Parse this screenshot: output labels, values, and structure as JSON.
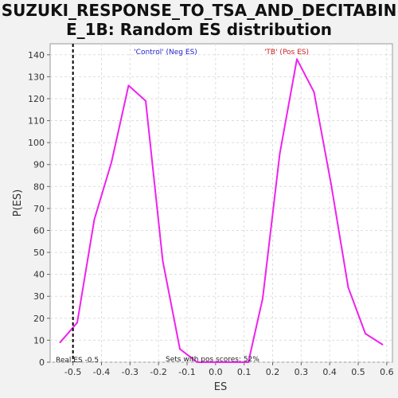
{
  "title_lines": [
    "SUZUKI_RESPONSE_TO_TSA_AND_DECITABIN",
    "E_1B: Random ES distribution"
  ],
  "chart_data": {
    "type": "line",
    "title": "SUZUKI_RESPONSE_TO_TSA_AND_DECITABINE_1B: Random ES distribution",
    "xlabel": "ES",
    "ylabel": "P(ES)",
    "xlim": [
      -0.58,
      0.62
    ],
    "ylim": [
      0,
      145
    ],
    "xticks": [
      -0.5,
      -0.4,
      -0.3,
      -0.2,
      -0.1,
      0.0,
      0.1,
      0.2,
      0.3,
      0.4,
      0.5,
      0.6
    ],
    "xtick_labels": [
      "-0.5",
      "-0.4",
      "-0.3",
      "-0.2",
      "-0.1",
      "0.0",
      "0.1",
      "0.2",
      "0.3",
      "0.4",
      "0.5",
      "0.6"
    ],
    "yticks": [
      0,
      10,
      20,
      30,
      40,
      50,
      60,
      70,
      80,
      90,
      100,
      110,
      120,
      130,
      140
    ],
    "grid": true,
    "series_color": "#ee22ee",
    "x": [
      -0.545,
      -0.485,
      -0.425,
      -0.365,
      -0.305,
      -0.245,
      -0.185,
      -0.125,
      -0.065,
      -0.005,
      0.055,
      0.115,
      0.165,
      0.225,
      0.285,
      0.345,
      0.405,
      0.465,
      0.525,
      0.585
    ],
    "y": [
      9,
      18,
      65,
      91,
      126,
      119,
      46,
      6,
      0,
      0,
      0,
      0,
      29,
      95,
      138,
      123,
      81,
      34,
      13,
      8
    ],
    "real_es": -0.5,
    "annotations": {
      "neg_label": "'Control' (Neg ES)",
      "pos_label": "'TB' (Pos ES)",
      "real_es_label": "Real ES -0.5",
      "pos_fraction_label": "Sets with pos scores: 52%"
    },
    "annotation_colors": {
      "neg": "#2222cc",
      "pos": "#cc2222"
    }
  }
}
